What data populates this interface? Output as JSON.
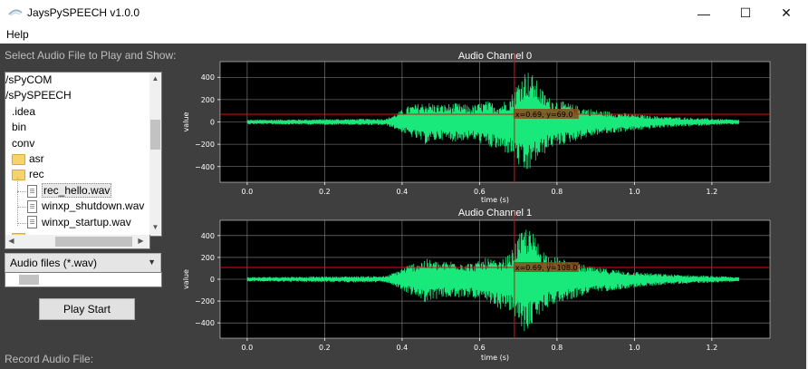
{
  "window": {
    "title": "JaysPySPEECH v1.0.0",
    "icons": {
      "app": "speech-bubble-icon",
      "minimize": "minimize-icon",
      "maximize": "maximize-icon",
      "close": "close-icon"
    },
    "minimize_glyph": "—",
    "maximize_glyph": "☐",
    "close_glyph": "✕"
  },
  "menu": {
    "help": "Help"
  },
  "left_panel": {
    "select_label": "Select Audio File to Play and Show:",
    "tree": [
      {
        "label": "/sPyCOM",
        "type": "text",
        "level": 0
      },
      {
        "label": "/sPySPEECH",
        "type": "text",
        "level": 0
      },
      {
        "label": ".idea",
        "type": "text",
        "level": 1
      },
      {
        "label": "bin",
        "type": "text",
        "level": 1
      },
      {
        "label": "conv",
        "type": "text",
        "level": 1
      },
      {
        "label": "asr",
        "type": "folder",
        "level": 1
      },
      {
        "label": "rec",
        "type": "folder",
        "level": 1
      },
      {
        "label": "rec_hello.wav",
        "type": "file",
        "level": 2,
        "selected": true
      },
      {
        "label": "winxp_shutdown.wav",
        "type": "file",
        "level": 2
      },
      {
        "label": "winxp_startup.wav",
        "type": "file",
        "level": 2
      },
      {
        "label": "..",
        "type": "folder",
        "level": 1
      }
    ],
    "file_type": "Audio files (*.wav)",
    "play_button": "Play Start",
    "record_label": "Record Audio File:"
  },
  "colors": {
    "workspace_bg": "#3f3f3f",
    "plot_bg": "#000000",
    "waveform": "#19e87a",
    "cursor": "#e01010",
    "grid": "#8a8a8a",
    "label_box": "#8a4a1a"
  },
  "chart_data": [
    {
      "type": "line",
      "title": "Audio Channel 0",
      "xlabel": "time (s)",
      "ylabel": "value",
      "xlim": [
        -0.07,
        1.35
      ],
      "ylim": [
        -540,
        540
      ],
      "xticks": [
        "0.0",
        "0.2",
        "0.4",
        "0.6",
        "0.8",
        "1.0",
        "1.2"
      ],
      "xtick_values": [
        0.0,
        0.2,
        0.4,
        0.6,
        0.8,
        1.0,
        1.2
      ],
      "yticks": [
        "400",
        "200",
        "0",
        "−200",
        "−400"
      ],
      "ytick_values": [
        400,
        200,
        0,
        -200,
        -400
      ],
      "grid": true,
      "waveform_x_range": [
        0.0,
        1.27
      ],
      "envelope": {
        "x": [
          0.0,
          0.36,
          0.42,
          0.46,
          0.5,
          0.54,
          0.58,
          0.6,
          0.62,
          0.65,
          0.68,
          0.7,
          0.72,
          0.74,
          0.76,
          0.78,
          0.82,
          0.86,
          0.9,
          0.95,
          1.0,
          1.05,
          1.1,
          1.2,
          1.27
        ],
        "upper": [
          20,
          30,
          150,
          180,
          160,
          170,
          150,
          170,
          190,
          160,
          230,
          380,
          480,
          420,
          300,
          220,
          180,
          140,
          110,
          90,
          70,
          55,
          45,
          30,
          20
        ],
        "lower": [
          -20,
          -30,
          -130,
          -200,
          -160,
          -180,
          -160,
          -190,
          -230,
          -260,
          -300,
          -400,
          -500,
          -380,
          -320,
          -240,
          -200,
          -160,
          -120,
          -100,
          -80,
          -60,
          -45,
          -30,
          -20
        ]
      },
      "cursor": {
        "x": 0.69,
        "y": 69.0,
        "label": "x=0.69, y=69.0"
      }
    },
    {
      "type": "line",
      "title": "Audio Channel 1",
      "xlabel": "time (s)",
      "ylabel": "value",
      "xlim": [
        -0.07,
        1.35
      ],
      "ylim": [
        -540,
        540
      ],
      "xticks": [
        "0.0",
        "0.2",
        "0.4",
        "0.6",
        "0.8",
        "1.0",
        "1.2"
      ],
      "xtick_values": [
        0.0,
        0.2,
        0.4,
        0.6,
        0.8,
        1.0,
        1.2
      ],
      "yticks": [
        "400",
        "200",
        "0",
        "−200",
        "−400"
      ],
      "ytick_values": [
        400,
        200,
        0,
        -200,
        -400
      ],
      "grid": true,
      "waveform_x_range": [
        0.0,
        1.27
      ],
      "envelope": {
        "x": [
          0.0,
          0.36,
          0.42,
          0.46,
          0.5,
          0.54,
          0.58,
          0.6,
          0.62,
          0.65,
          0.68,
          0.7,
          0.72,
          0.74,
          0.76,
          0.78,
          0.82,
          0.86,
          0.9,
          0.95,
          1.0,
          1.05,
          1.1,
          1.2,
          1.27
        ],
        "upper": [
          20,
          30,
          140,
          190,
          160,
          180,
          150,
          170,
          200,
          160,
          240,
          400,
          490,
          420,
          290,
          220,
          180,
          140,
          110,
          90,
          70,
          55,
          45,
          30,
          20
        ],
        "lower": [
          -20,
          -30,
          -140,
          -210,
          -170,
          -180,
          -160,
          -200,
          -240,
          -270,
          -310,
          -410,
          -510,
          -390,
          -320,
          -240,
          -200,
          -160,
          -120,
          -100,
          -80,
          -60,
          -45,
          -30,
          -20
        ]
      },
      "cursor": {
        "x": 0.69,
        "y": 108.0,
        "label": "x=0.69, y=108.0"
      }
    }
  ]
}
